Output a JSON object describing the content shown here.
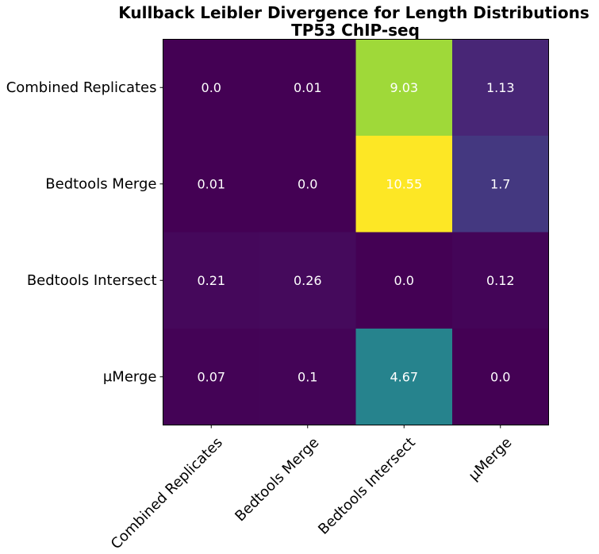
{
  "chart_data": {
    "type": "heatmap",
    "title_lines": [
      "Kullback Leibler Divergence for Length Distributions",
      "TP53 ChIP-seq"
    ],
    "rows": [
      "Combined Replicates",
      "Bedtools Merge",
      "Bedtools Intersect",
      "μMerge"
    ],
    "columns": [
      "Combined Replicates",
      "Bedtools Merge",
      "Bedtools Intersect",
      "μMerge"
    ],
    "values": [
      [
        0.0,
        0.01,
        9.03,
        1.13
      ],
      [
        0.01,
        0.0,
        10.55,
        1.7
      ],
      [
        0.21,
        0.26,
        0.0,
        0.12
      ],
      [
        0.07,
        0.1,
        4.67,
        0.0
      ]
    ],
    "value_labels": [
      [
        "0.0",
        "0.01",
        "9.03",
        "1.13"
      ],
      [
        "0.01",
        "0.0",
        "10.55",
        "1.7"
      ],
      [
        "0.21",
        "0.26",
        "0.0",
        "0.12"
      ],
      [
        "0.07",
        "0.1",
        "4.67",
        "0.0"
      ]
    ],
    "colormap": "viridis",
    "vmin": 0.0,
    "vmax": 10.55,
    "grid": false,
    "label_color": "#ffffff"
  }
}
